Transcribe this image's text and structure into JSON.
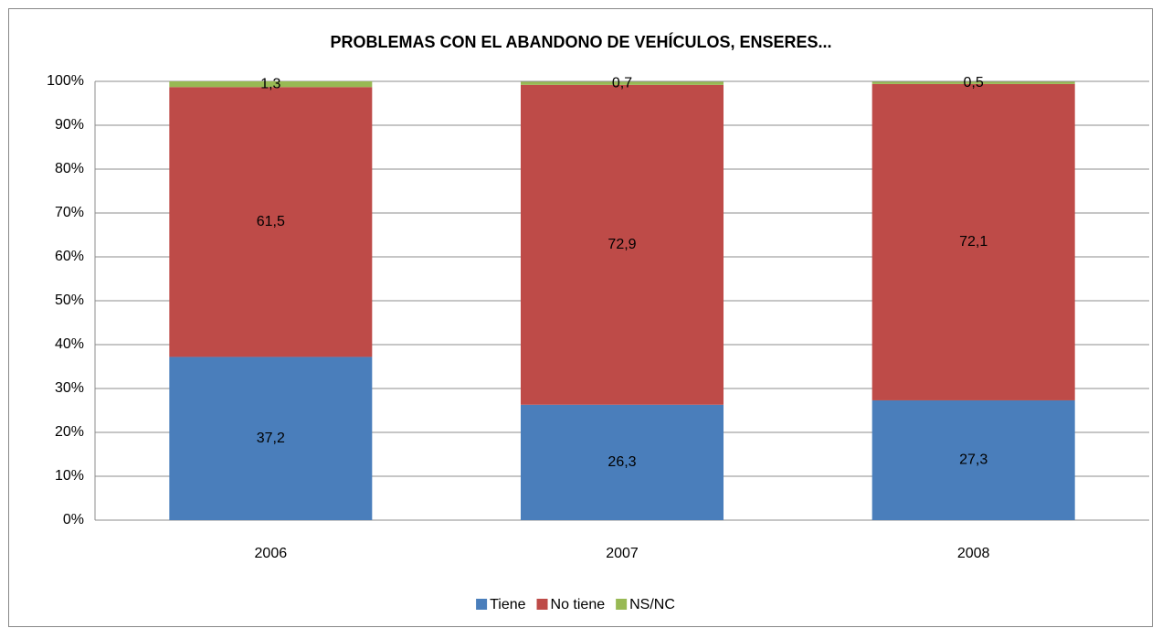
{
  "chart_data": {
    "type": "stacked_bar",
    "title": "PROBLEMAS CON EL ABANDONO DE VEHÍCULOS, ENSERES...",
    "categories": [
      "2006",
      "2007",
      "2008"
    ],
    "series": [
      {
        "name": "Tiene",
        "color": "#4a7ebb",
        "values": [
          37.2,
          26.3,
          27.3
        ],
        "value_labels": [
          "37,2",
          "26,3",
          "27,3"
        ]
      },
      {
        "name": "No tiene",
        "color": "#be4b48",
        "values": [
          61.5,
          72.9,
          72.1
        ],
        "value_labels": [
          "61,5",
          "72,9",
          "72,1"
        ]
      },
      {
        "name": "NS/NC",
        "color": "#98b954",
        "values": [
          1.3,
          0.7,
          0.5
        ],
        "value_labels": [
          "1,3",
          "0,7",
          "0,5"
        ]
      }
    ],
    "ylim": [
      0,
      100
    ],
    "yticks": [
      {
        "value": 0,
        "label": "0%"
      },
      {
        "value": 10,
        "label": "10%"
      },
      {
        "value": 20,
        "label": "20%"
      },
      {
        "value": 30,
        "label": "30%"
      },
      {
        "value": 40,
        "label": "40%"
      },
      {
        "value": 50,
        "label": "50%"
      },
      {
        "value": 60,
        "label": "60%"
      },
      {
        "value": 70,
        "label": "70%"
      },
      {
        "value": 80,
        "label": "80%"
      },
      {
        "value": 90,
        "label": "90%"
      },
      {
        "value": 100,
        "label": "100%"
      }
    ],
    "grid": true,
    "legend": "bottom"
  }
}
